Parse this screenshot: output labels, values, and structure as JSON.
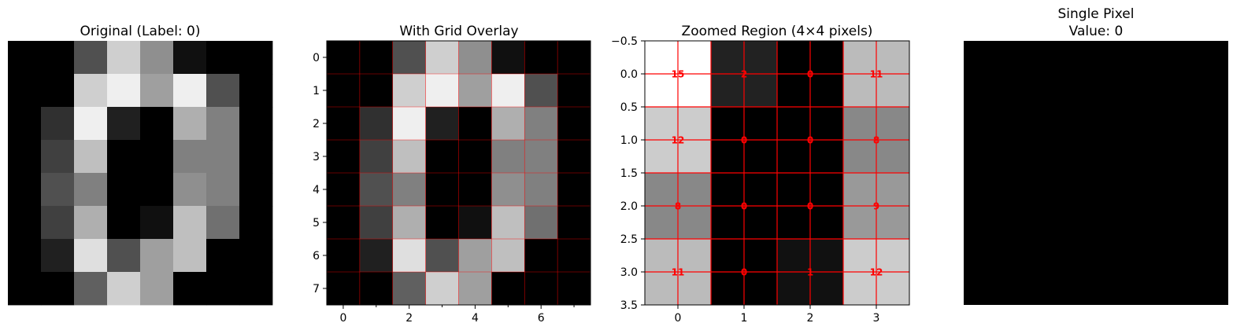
{
  "chart_data": [
    {
      "type": "heatmap",
      "title": "Original (Label: 0)",
      "colormap": "gray",
      "vmin": 0,
      "vmax": 16,
      "matrix": [
        [
          0,
          0,
          5,
          13,
          9,
          1,
          0,
          0
        ],
        [
          0,
          0,
          13,
          15,
          10,
          15,
          5,
          0
        ],
        [
          0,
          3,
          15,
          2,
          0,
          11,
          8,
          0
        ],
        [
          0,
          4,
          12,
          0,
          0,
          8,
          8,
          0
        ],
        [
          0,
          5,
          8,
          0,
          0,
          9,
          8,
          0
        ],
        [
          0,
          4,
          11,
          0,
          1,
          12,
          7,
          0
        ],
        [
          0,
          2,
          14,
          5,
          10,
          12,
          0,
          0
        ],
        [
          0,
          0,
          6,
          13,
          10,
          0,
          0,
          0
        ]
      ],
      "axis": "off"
    },
    {
      "type": "heatmap",
      "title": "With Grid Overlay",
      "colormap": "gray",
      "vmin": 0,
      "vmax": 16,
      "matrix_ref": "same as Original",
      "x_ticks": [
        "0",
        "2",
        "4",
        "6"
      ],
      "y_ticks": [
        "0",
        "1",
        "2",
        "3",
        "4",
        "5",
        "6",
        "7"
      ],
      "grid_color": "#ff0000",
      "xlim": [
        -0.5,
        7.5
      ],
      "ylim": [
        7.5,
        -0.5
      ]
    },
    {
      "type": "heatmap",
      "title": "Zoomed Region (4×4 pixels)",
      "colormap": "gray",
      "vmin": 0,
      "vmax": 15,
      "matrix": [
        [
          15,
          2,
          0,
          11
        ],
        [
          12,
          0,
          0,
          8
        ],
        [
          8,
          0,
          0,
          9
        ],
        [
          11,
          0,
          1,
          12
        ]
      ],
      "x_ticks": [
        "0",
        "1",
        "2",
        "3"
      ],
      "y_ticks": [
        "−0.5",
        "0.0",
        "0.5",
        "1.0",
        "1.5",
        "2.0",
        "2.5",
        "3.0",
        "3.5"
      ],
      "grid_color": "#ff0000",
      "label_color": "#ff0000",
      "xlim": [
        -0.5,
        3.5
      ],
      "ylim": [
        3.5,
        -0.5
      ]
    },
    {
      "type": "heatmap",
      "title_line1": "Single Pixel",
      "title_line2": "Value: 0",
      "matrix": [
        [
          0
        ]
      ],
      "axis": "off"
    }
  ]
}
